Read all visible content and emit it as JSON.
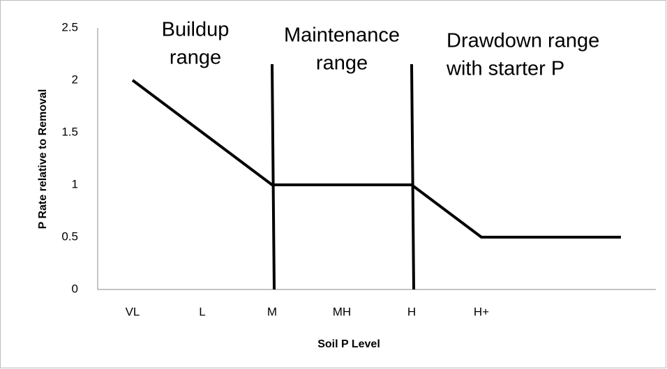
{
  "chart_data": {
    "type": "line",
    "x_label": "Soil P Level",
    "y_label": "P Rate relative to Removal",
    "categories": [
      "VL",
      "L",
      "M",
      "MH",
      "H",
      "H+",
      null,
      null
    ],
    "values": [
      2,
      1.5,
      1,
      1,
      1,
      0.5,
      0.5,
      0.5
    ],
    "color": "#000000",
    "ylim": [
      0,
      2.5
    ],
    "yticks": [
      0,
      0.5,
      1,
      1.5,
      2,
      2.5
    ],
    "grid": false,
    "annotations": [
      {
        "lines": [
          "Buildup",
          "range"
        ]
      },
      {
        "lines": [
          "Maintenance",
          "range"
        ]
      },
      {
        "lines": [
          "Drawdown range",
          "with starter P"
        ]
      }
    ]
  }
}
